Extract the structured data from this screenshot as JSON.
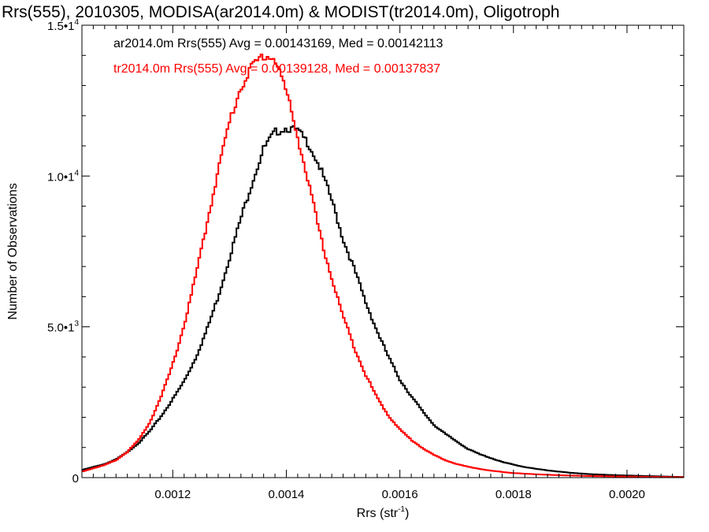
{
  "chart_data": {
    "type": "line",
    "title": "Rrs(555), 2010305, MODISA(ar2014.0m) & MODIST(tr2014.0m), Oligotroph",
    "xlabel_base": "Rrs (str",
    "xlabel_sup": "-1",
    "xlabel_close": ")",
    "ylabel": "Number of Observations",
    "xlim": [
      0.00104,
      0.0021
    ],
    "ylim": [
      0,
      15000
    ],
    "x_ticks": [
      {
        "value": 0.0012,
        "label": "0.0012"
      },
      {
        "value": 0.0014,
        "label": "0.0014"
      },
      {
        "value": 0.0016,
        "label": "0.0016"
      },
      {
        "value": 0.0018,
        "label": "0.0018"
      },
      {
        "value": 0.002,
        "label": "0.0020"
      }
    ],
    "y_ticks": [
      {
        "value": 0,
        "mantissa": "0",
        "exp": ""
      },
      {
        "value": 5000,
        "mantissa": "5.0•1",
        "exp": "3"
      },
      {
        "value": 10000,
        "mantissa": "1.0•1",
        "exp": "4"
      },
      {
        "value": 15000,
        "mantissa": "1.5•1",
        "exp": "4"
      }
    ],
    "grid": false,
    "legend_position": "top-left",
    "series": [
      {
        "name": "ar2014.0m",
        "label": "ar2014.0m Rrs(555) Avg = 0.00143169, Med = 0.00142113",
        "color": "#000000",
        "points": [
          [
            0.00104,
            250
          ],
          [
            0.00108,
            450
          ],
          [
            0.0011,
            600
          ],
          [
            0.00112,
            850
          ],
          [
            0.00114,
            1150
          ],
          [
            0.00116,
            1550
          ],
          [
            0.00118,
            2050
          ],
          [
            0.0012,
            2600
          ],
          [
            0.00122,
            3200
          ],
          [
            0.00124,
            3950
          ],
          [
            0.00126,
            4900
          ],
          [
            0.00128,
            6000
          ],
          [
            0.0013,
            7300
          ],
          [
            0.00132,
            8600
          ],
          [
            0.00134,
            9800
          ],
          [
            0.00136,
            10900
          ],
          [
            0.00138,
            11450
          ],
          [
            0.0014,
            11600
          ],
          [
            0.00142,
            11500
          ],
          [
            0.00144,
            11050
          ],
          [
            0.00146,
            10250
          ],
          [
            0.00148,
            9200
          ],
          [
            0.0015,
            7900
          ],
          [
            0.00152,
            6900
          ],
          [
            0.00154,
            5800
          ],
          [
            0.00156,
            4850
          ],
          [
            0.00158,
            4000
          ],
          [
            0.0016,
            3250
          ],
          [
            0.00162,
            2700
          ],
          [
            0.00164,
            2200
          ],
          [
            0.00166,
            1750
          ],
          [
            0.00168,
            1450
          ],
          [
            0.0017,
            1200
          ],
          [
            0.00172,
            950
          ],
          [
            0.00174,
            780
          ],
          [
            0.00176,
            650
          ],
          [
            0.00178,
            520
          ],
          [
            0.0018,
            430
          ],
          [
            0.00182,
            350
          ],
          [
            0.00184,
            290
          ],
          [
            0.00186,
            240
          ],
          [
            0.00188,
            200
          ],
          [
            0.0019,
            160
          ],
          [
            0.00194,
            110
          ],
          [
            0.00198,
            80
          ],
          [
            0.00202,
            60
          ],
          [
            0.00206,
            40
          ],
          [
            0.0021,
            20
          ]
        ]
      },
      {
        "name": "tr2014.0m",
        "label": "tr2014.0m Rrs(555) Avg = 0.00139128, Med = 0.00137837",
        "color": "#ff0000",
        "points": [
          [
            0.00104,
            200
          ],
          [
            0.00108,
            420
          ],
          [
            0.0011,
            580
          ],
          [
            0.00112,
            850
          ],
          [
            0.00114,
            1250
          ],
          [
            0.00116,
            1850
          ],
          [
            0.00118,
            2700
          ],
          [
            0.0012,
            3750
          ],
          [
            0.00122,
            5050
          ],
          [
            0.00124,
            6650
          ],
          [
            0.00126,
            8400
          ],
          [
            0.00128,
            10200
          ],
          [
            0.0013,
            11800
          ],
          [
            0.00132,
            12950
          ],
          [
            0.00134,
            13650
          ],
          [
            0.00136,
            14000
          ],
          [
            0.00138,
            13900
          ],
          [
            0.0014,
            12800
          ],
          [
            0.00142,
            11300
          ],
          [
            0.00144,
            9700
          ],
          [
            0.00146,
            8000
          ],
          [
            0.00148,
            6600
          ],
          [
            0.0015,
            5350
          ],
          [
            0.00152,
            4300
          ],
          [
            0.00154,
            3400
          ],
          [
            0.00156,
            2650
          ],
          [
            0.00158,
            2050
          ],
          [
            0.0016,
            1600
          ],
          [
            0.00162,
            1250
          ],
          [
            0.00164,
            980
          ],
          [
            0.00166,
            750
          ],
          [
            0.00168,
            580
          ],
          [
            0.0017,
            450
          ],
          [
            0.00172,
            360
          ],
          [
            0.00174,
            290
          ],
          [
            0.00176,
            230
          ],
          [
            0.00178,
            190
          ],
          [
            0.0018,
            150
          ],
          [
            0.00184,
            110
          ],
          [
            0.00188,
            80
          ],
          [
            0.00192,
            60
          ],
          [
            0.00196,
            45
          ],
          [
            0.002,
            35
          ],
          [
            0.00205,
            25
          ],
          [
            0.0021,
            15
          ]
        ]
      }
    ]
  }
}
